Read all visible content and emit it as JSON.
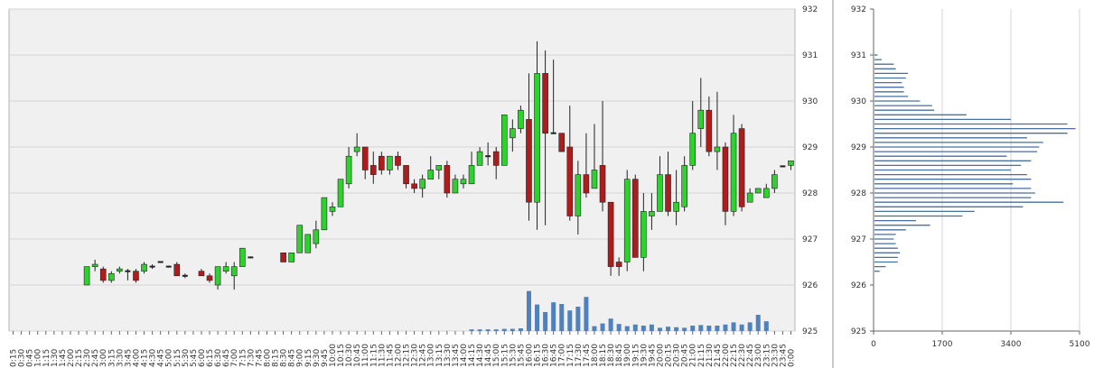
{
  "colors": {
    "up": "#2fd12f",
    "down": "#b01c1c",
    "volume": "#4f81bd",
    "profile": "#4a6fa0",
    "panel_bg": "#f0f0f0"
  },
  "chart_data": [
    {
      "type": "candlestick",
      "ylim": [
        925,
        932
      ],
      "y_ticks": [
        "925",
        "926",
        "927",
        "928",
        "929",
        "930",
        "931",
        "932"
      ],
      "x_labels": [
        "0:15",
        "0:30",
        "0:45",
        "1:00",
        "1:15",
        "1:30",
        "1:45",
        "2:00",
        "2:15",
        "2:30",
        "2:45",
        "3:00",
        "3:15",
        "3:30",
        "3:45",
        "4:00",
        "4:15",
        "4:30",
        "4:45",
        "5:00",
        "5:15",
        "5:30",
        "5:45",
        "6:00",
        "6:15",
        "6:30",
        "6:45",
        "7:00",
        "7:15",
        "7:30",
        "7:45",
        "8:00",
        "8:15",
        "8:30",
        "8:45",
        "9:00",
        "9:15",
        "9:30",
        "9:45",
        "10:00",
        "10:15",
        "10:30",
        "10:45",
        "11:00",
        "11:15",
        "11:30",
        "11:45",
        "12:00",
        "12:15",
        "12:30",
        "12:45",
        "13:00",
        "13:15",
        "13:30",
        "13:45",
        "14:00",
        "14:15",
        "14:30",
        "14:45",
        "15:00",
        "15:15",
        "15:30",
        "15:45",
        "16:00",
        "16:15",
        "16:30",
        "16:45",
        "17:00",
        "17:15",
        "17:30",
        "17:45",
        "18:00",
        "18:15",
        "18:30",
        "18:45",
        "19:00",
        "19:15",
        "19:30",
        "19:45",
        "20:00",
        "20:15",
        "20:30",
        "20:45",
        "21:00",
        "21:15",
        "21:30",
        "21:45",
        "22:00",
        "22:15",
        "22:30",
        "22:45",
        "23:00",
        "23:15",
        "23:30",
        "23:45",
        "0:00"
      ],
      "candles": [
        {
          "i": 9,
          "o": 926.0,
          "h": 926.4,
          "l": 926.0,
          "c": 926.4
        },
        {
          "i": 10,
          "o": 926.4,
          "h": 926.55,
          "l": 926.3,
          "c": 926.45
        },
        {
          "i": 11,
          "o": 926.35,
          "h": 926.4,
          "l": 926.05,
          "c": 926.1
        },
        {
          "i": 12,
          "o": 926.1,
          "h": 926.3,
          "l": 926.05,
          "c": 926.25
        },
        {
          "i": 13,
          "o": 926.3,
          "h": 926.4,
          "l": 926.25,
          "c": 926.35
        },
        {
          "i": 14,
          "o": 926.3,
          "h": 926.35,
          "l": 926.1,
          "c": 926.28
        },
        {
          "i": 15,
          "o": 926.3,
          "h": 926.35,
          "l": 926.05,
          "c": 926.1
        },
        {
          "i": 16,
          "o": 926.3,
          "h": 926.5,
          "l": 926.25,
          "c": 926.45
        },
        {
          "i": 17,
          "o": 926.4,
          "h": 926.45,
          "l": 926.35,
          "c": 926.4
        },
        {
          "i": 18,
          "o": 926.5,
          "h": 926.5,
          "l": 926.5,
          "c": 926.5
        },
        {
          "i": 19,
          "o": 926.4,
          "h": 926.42,
          "l": 926.38,
          "c": 926.4
        },
        {
          "i": 20,
          "o": 926.45,
          "h": 926.5,
          "l": 926.2,
          "c": 926.2
        },
        {
          "i": 21,
          "o": 926.2,
          "h": 926.25,
          "l": 926.15,
          "c": 926.2
        },
        {
          "i": 23,
          "o": 926.3,
          "h": 926.35,
          "l": 926.2,
          "c": 926.2
        },
        {
          "i": 24,
          "o": 926.2,
          "h": 926.25,
          "l": 926.05,
          "c": 926.1
        },
        {
          "i": 25,
          "o": 926.0,
          "h": 926.4,
          "l": 925.9,
          "c": 926.4
        },
        {
          "i": 26,
          "o": 926.3,
          "h": 926.5,
          "l": 926.25,
          "c": 926.4
        },
        {
          "i": 27,
          "o": 926.2,
          "h": 926.5,
          "l": 925.9,
          "c": 926.4
        },
        {
          "i": 28,
          "o": 926.4,
          "h": 926.8,
          "l": 926.4,
          "c": 926.8
        },
        {
          "i": 29,
          "o": 926.6,
          "h": 926.6,
          "l": 926.6,
          "c": 926.6
        },
        {
          "i": 33,
          "o": 926.7,
          "h": 926.7,
          "l": 926.5,
          "c": 926.5
        },
        {
          "i": 34,
          "o": 926.5,
          "h": 926.7,
          "l": 926.5,
          "c": 926.7
        },
        {
          "i": 35,
          "o": 926.7,
          "h": 927.3,
          "l": 926.7,
          "c": 927.3
        },
        {
          "i": 36,
          "o": 926.7,
          "h": 927.1,
          "l": 926.7,
          "c": 927.1
        },
        {
          "i": 37,
          "o": 926.9,
          "h": 927.4,
          "l": 926.8,
          "c": 927.2
        },
        {
          "i": 38,
          "o": 927.2,
          "h": 927.9,
          "l": 927.2,
          "c": 927.9
        },
        {
          "i": 39,
          "o": 927.6,
          "h": 927.8,
          "l": 927.5,
          "c": 927.7
        },
        {
          "i": 40,
          "o": 927.7,
          "h": 928.3,
          "l": 927.7,
          "c": 928.3
        },
        {
          "i": 41,
          "o": 928.2,
          "h": 929.0,
          "l": 928.1,
          "c": 928.8
        },
        {
          "i": 42,
          "o": 928.9,
          "h": 929.3,
          "l": 928.8,
          "c": 929.0
        },
        {
          "i": 43,
          "o": 929.0,
          "h": 929.0,
          "l": 928.3,
          "c": 928.5
        },
        {
          "i": 44,
          "o": 928.6,
          "h": 928.9,
          "l": 928.2,
          "c": 928.4
        },
        {
          "i": 45,
          "o": 928.8,
          "h": 928.9,
          "l": 928.4,
          "c": 928.5
        },
        {
          "i": 46,
          "o": 928.5,
          "h": 928.8,
          "l": 928.4,
          "c": 928.8
        },
        {
          "i": 47,
          "o": 928.8,
          "h": 928.9,
          "l": 928.5,
          "c": 928.6
        },
        {
          "i": 48,
          "o": 928.6,
          "h": 928.6,
          "l": 928.1,
          "c": 928.2
        },
        {
          "i": 49,
          "o": 928.2,
          "h": 928.3,
          "l": 928.0,
          "c": 928.1
        },
        {
          "i": 50,
          "o": 928.1,
          "h": 928.4,
          "l": 927.9,
          "c": 928.3
        },
        {
          "i": 51,
          "o": 928.3,
          "h": 928.8,
          "l": 928.3,
          "c": 928.5
        },
        {
          "i": 52,
          "o": 928.5,
          "h": 928.6,
          "l": 928.3,
          "c": 928.6
        },
        {
          "i": 53,
          "o": 928.6,
          "h": 928.7,
          "l": 927.9,
          "c": 928.0
        },
        {
          "i": 54,
          "o": 928.0,
          "h": 928.4,
          "l": 928.0,
          "c": 928.3
        },
        {
          "i": 55,
          "o": 928.2,
          "h": 928.4,
          "l": 928.1,
          "c": 928.3
        },
        {
          "i": 56,
          "o": 928.2,
          "h": 928.9,
          "l": 928.2,
          "c": 928.6
        },
        {
          "i": 57,
          "o": 928.6,
          "h": 929.0,
          "l": 928.6,
          "c": 928.9
        },
        {
          "i": 58,
          "o": 928.8,
          "h": 929.1,
          "l": 928.6,
          "c": 928.8
        },
        {
          "i": 59,
          "o": 928.9,
          "h": 929.0,
          "l": 928.3,
          "c": 928.6
        },
        {
          "i": 60,
          "o": 928.6,
          "h": 929.7,
          "l": 928.6,
          "c": 929.7
        },
        {
          "i": 61,
          "o": 929.2,
          "h": 929.6,
          "l": 928.9,
          "c": 929.4
        },
        {
          "i": 62,
          "o": 929.4,
          "h": 929.9,
          "l": 929.3,
          "c": 929.8
        },
        {
          "i": 63,
          "o": 929.6,
          "h": 930.6,
          "l": 927.4,
          "c": 927.8
        },
        {
          "i": 64,
          "o": 927.8,
          "h": 931.3,
          "l": 927.2,
          "c": 930.6
        },
        {
          "i": 65,
          "o": 930.6,
          "h": 931.1,
          "l": 927.3,
          "c": 929.3
        },
        {
          "i": 66,
          "o": 929.3,
          "h": 930.9,
          "l": 929.3,
          "c": 929.3
        },
        {
          "i": 67,
          "o": 929.3,
          "h": 929.3,
          "l": 928.9,
          "c": 928.9
        },
        {
          "i": 68,
          "o": 929.0,
          "h": 929.9,
          "l": 927.4,
          "c": 927.5
        },
        {
          "i": 69,
          "o": 927.5,
          "h": 928.7,
          "l": 927.1,
          "c": 928.4
        },
        {
          "i": 70,
          "o": 928.4,
          "h": 929.3,
          "l": 927.9,
          "c": 928.0
        },
        {
          "i": 71,
          "o": 928.1,
          "h": 929.5,
          "l": 928.1,
          "c": 928.5
        },
        {
          "i": 72,
          "o": 928.6,
          "h": 930.0,
          "l": 927.6,
          "c": 927.8
        },
        {
          "i": 73,
          "o": 927.8,
          "h": 927.8,
          "l": 926.2,
          "c": 926.4
        },
        {
          "i": 74,
          "o": 926.5,
          "h": 926.6,
          "l": 926.2,
          "c": 926.4
        },
        {
          "i": 75,
          "o": 926.5,
          "h": 928.5,
          "l": 926.3,
          "c": 928.3
        },
        {
          "i": 76,
          "o": 928.3,
          "h": 928.4,
          "l": 926.6,
          "c": 926.6
        },
        {
          "i": 77,
          "o": 926.6,
          "h": 928.0,
          "l": 926.3,
          "c": 927.6
        },
        {
          "i": 78,
          "o": 927.5,
          "h": 928.0,
          "l": 927.2,
          "c": 927.6
        },
        {
          "i": 79,
          "o": 927.6,
          "h": 928.8,
          "l": 927.6,
          "c": 928.4
        },
        {
          "i": 80,
          "o": 928.4,
          "h": 928.9,
          "l": 927.5,
          "c": 927.6
        },
        {
          "i": 81,
          "o": 927.6,
          "h": 928.5,
          "l": 927.3,
          "c": 927.8
        },
        {
          "i": 82,
          "o": 927.7,
          "h": 928.8,
          "l": 927.6,
          "c": 928.6
        },
        {
          "i": 83,
          "o": 928.6,
          "h": 930.0,
          "l": 928.5,
          "c": 929.3
        },
        {
          "i": 84,
          "o": 929.4,
          "h": 930.5,
          "l": 929.0,
          "c": 929.8
        },
        {
          "i": 85,
          "o": 929.8,
          "h": 930.1,
          "l": 928.8,
          "c": 928.9
        },
        {
          "i": 86,
          "o": 928.9,
          "h": 930.2,
          "l": 928.5,
          "c": 929.0
        },
        {
          "i": 87,
          "o": 929.0,
          "h": 929.1,
          "l": 927.3,
          "c": 927.6
        },
        {
          "i": 88,
          "o": 927.6,
          "h": 929.7,
          "l": 927.5,
          "c": 929.3
        },
        {
          "i": 89,
          "o": 929.4,
          "h": 929.5,
          "l": 927.6,
          "c": 927.7
        },
        {
          "i": 90,
          "o": 927.8,
          "h": 928.1,
          "l": 927.8,
          "c": 928.0
        },
        {
          "i": 91,
          "o": 928.0,
          "h": 928.1,
          "l": 928.0,
          "c": 928.1
        },
        {
          "i": 92,
          "o": 927.9,
          "h": 928.2,
          "l": 927.9,
          "c": 928.1
        },
        {
          "i": 93,
          "o": 928.1,
          "h": 928.5,
          "l": 928.0,
          "c": 928.4
        },
        {
          "i": 94,
          "o": 928.58,
          "h": 928.6,
          "l": 928.56,
          "c": 928.58
        },
        {
          "i": 95,
          "o": 928.6,
          "h": 928.7,
          "l": 928.5,
          "c": 928.7
        }
      ],
      "volume": [
        {
          "i": 56,
          "v": 30
        },
        {
          "i": 57,
          "v": 30
        },
        {
          "i": 58,
          "v": 30
        },
        {
          "i": 59,
          "v": 30
        },
        {
          "i": 60,
          "v": 40
        },
        {
          "i": 61,
          "v": 40
        },
        {
          "i": 62,
          "v": 50
        },
        {
          "i": 63,
          "v": 740
        },
        {
          "i": 64,
          "v": 490
        },
        {
          "i": 65,
          "v": 350
        },
        {
          "i": 66,
          "v": 530
        },
        {
          "i": 67,
          "v": 500
        },
        {
          "i": 68,
          "v": 380
        },
        {
          "i": 69,
          "v": 450
        },
        {
          "i": 70,
          "v": 630
        },
        {
          "i": 71,
          "v": 90
        },
        {
          "i": 72,
          "v": 140
        },
        {
          "i": 73,
          "v": 230
        },
        {
          "i": 74,
          "v": 130
        },
        {
          "i": 75,
          "v": 90
        },
        {
          "i": 76,
          "v": 120
        },
        {
          "i": 77,
          "v": 100
        },
        {
          "i": 78,
          "v": 120
        },
        {
          "i": 79,
          "v": 60
        },
        {
          "i": 80,
          "v": 80
        },
        {
          "i": 81,
          "v": 70
        },
        {
          "i": 82,
          "v": 60
        },
        {
          "i": 83,
          "v": 100
        },
        {
          "i": 84,
          "v": 110
        },
        {
          "i": 85,
          "v": 100
        },
        {
          "i": 86,
          "v": 100
        },
        {
          "i": 87,
          "v": 120
        },
        {
          "i": 88,
          "v": 160
        },
        {
          "i": 89,
          "v": 120
        },
        {
          "i": 90,
          "v": 160
        },
        {
          "i": 91,
          "v": 300
        },
        {
          "i": 92,
          "v": 180
        }
      ]
    },
    {
      "type": "bar",
      "orientation": "horizontal",
      "ylim": [
        925,
        932
      ],
      "y_ticks": [
        "925",
        "926",
        "927",
        "928",
        "929",
        "930",
        "931",
        "932"
      ],
      "xlim": [
        0,
        5100
      ],
      "x_ticks": [
        "0",
        "1700",
        "3400",
        "5100"
      ],
      "profile": [
        {
          "p": 926.3,
          "v": 150
        },
        {
          "p": 926.4,
          "v": 300
        },
        {
          "p": 926.5,
          "v": 600
        },
        {
          "p": 926.6,
          "v": 600
        },
        {
          "p": 926.7,
          "v": 650
        },
        {
          "p": 926.8,
          "v": 600
        },
        {
          "p": 926.9,
          "v": 550
        },
        {
          "p": 927.0,
          "v": 500
        },
        {
          "p": 927.1,
          "v": 550
        },
        {
          "p": 927.2,
          "v": 800
        },
        {
          "p": 927.3,
          "v": 1400
        },
        {
          "p": 927.4,
          "v": 1050
        },
        {
          "p": 927.5,
          "v": 2200
        },
        {
          "p": 927.6,
          "v": 2500
        },
        {
          "p": 927.7,
          "v": 3700
        },
        {
          "p": 927.8,
          "v": 4700
        },
        {
          "p": 927.9,
          "v": 3900
        },
        {
          "p": 928.0,
          "v": 4000
        },
        {
          "p": 928.1,
          "v": 3900
        },
        {
          "p": 928.2,
          "v": 3450
        },
        {
          "p": 928.3,
          "v": 3900
        },
        {
          "p": 928.4,
          "v": 3800
        },
        {
          "p": 928.5,
          "v": 3400
        },
        {
          "p": 928.6,
          "v": 3650
        },
        {
          "p": 928.7,
          "v": 3900
        },
        {
          "p": 928.8,
          "v": 3300
        },
        {
          "p": 928.9,
          "v": 4050
        },
        {
          "p": 929.0,
          "v": 4100
        },
        {
          "p": 929.1,
          "v": 4200
        },
        {
          "p": 929.2,
          "v": 3800
        },
        {
          "p": 929.3,
          "v": 4800
        },
        {
          "p": 929.4,
          "v": 5000
        },
        {
          "p": 929.5,
          "v": 4800
        },
        {
          "p": 929.6,
          "v": 3400
        },
        {
          "p": 929.7,
          "v": 2300
        },
        {
          "p": 929.8,
          "v": 1500
        },
        {
          "p": 929.9,
          "v": 1450
        },
        {
          "p": 930.0,
          "v": 1150
        },
        {
          "p": 930.1,
          "v": 850
        },
        {
          "p": 930.2,
          "v": 750
        },
        {
          "p": 930.3,
          "v": 750
        },
        {
          "p": 930.4,
          "v": 700
        },
        {
          "p": 930.5,
          "v": 800
        },
        {
          "p": 930.6,
          "v": 850
        },
        {
          "p": 930.7,
          "v": 550
        },
        {
          "p": 930.8,
          "v": 500
        },
        {
          "p": 930.9,
          "v": 200
        },
        {
          "p": 931.0,
          "v": 100
        }
      ]
    }
  ]
}
